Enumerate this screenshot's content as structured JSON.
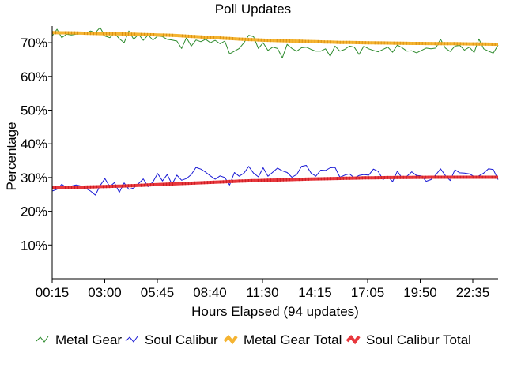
{
  "chart_data": {
    "type": "line",
    "title": "Poll Updates",
    "xlabel": "Hours Elapsed (94 updates)",
    "ylabel": "Percentage",
    "x_ticks": [
      "00:15",
      "03:00",
      "05:45",
      "08:40",
      "11:30",
      "14:15",
      "17:05",
      "19:50",
      "22:35"
    ],
    "y_ticks": [
      "10%",
      "20%",
      "30%",
      "40%",
      "50%",
      "60%",
      "70%"
    ],
    "ylim": [
      0,
      75
    ],
    "n_updates": 94,
    "grid": false,
    "legend_position": "bottom",
    "series": [
      {
        "name": "Metal Gear",
        "color": "#2e8b2e",
        "values": [
          72,
          74,
          71.5,
          72.5,
          72.3,
          72.5,
          72.6,
          72.8,
          73.5,
          73,
          74.5,
          72,
          71.5,
          72.8,
          71.2,
          70,
          73.5,
          71,
          72.5,
          70.7,
          72.3,
          70.8,
          72,
          71.8,
          71,
          70.8,
          70.5,
          68.3,
          71.5,
          69,
          70.8,
          70.3,
          71,
          70,
          70.7,
          69.7,
          70.5,
          66.7,
          67.5,
          68.3,
          70,
          72.2,
          71.8,
          68.3,
          70,
          67.7,
          68.7,
          68.3,
          65.5,
          69.5,
          68.3,
          67.5,
          68.5,
          68.7,
          68,
          67.5,
          67.5,
          68.2,
          66,
          69,
          67.5,
          68,
          69,
          68.7,
          66.5,
          69,
          68.2,
          67.7,
          67.3,
          68,
          68.7,
          67.2,
          69.3,
          68.5,
          67.5,
          67.6,
          67,
          67.7,
          68.4,
          68.2,
          68.4,
          71,
          68.4,
          67.4,
          69,
          69.2,
          67.8,
          68.7,
          67.1,
          71.1,
          68.2,
          67.5,
          66.9,
          69.3
        ]
      },
      {
        "name": "Soul Calibur",
        "color": "#1a1ad4",
        "values": [
          26,
          26.5,
          28,
          27,
          27.5,
          27.8,
          27.5,
          26.8,
          26,
          24.8,
          27.6,
          29.7,
          27.3,
          28.5,
          25.6,
          28.4,
          26.5,
          26.9,
          28.2,
          29.6,
          27.3,
          28.7,
          31.2,
          29,
          30.9,
          28,
          30.7,
          29.2,
          29.7,
          30.9,
          33,
          32.5,
          31.6,
          30.5,
          29.5,
          30.5,
          30,
          27.8,
          31.5,
          30.4,
          31.3,
          33.3,
          31.3,
          30.2,
          32.9,
          30.4,
          31.6,
          32.8,
          32,
          31.5,
          30.1,
          30.9,
          33.3,
          33.6,
          31.3,
          30.4,
          32.2,
          32.1,
          32.9,
          33,
          30.1,
          30.7,
          31.1,
          29.9,
          30.6,
          30.9,
          30.7,
          32.5,
          31.8,
          29.4,
          30.3,
          28.8,
          31.9,
          29.8,
          30.4,
          31.7,
          30.6,
          30.5,
          28.9,
          29.4,
          30.8,
          32.6,
          30.6,
          29.1,
          32.3,
          31.4,
          31.3,
          31.1,
          30.3,
          30.5,
          31.3,
          32.6,
          32.4,
          29.4
        ]
      },
      {
        "name": "Metal Gear Total",
        "color": "#f5b431",
        "values": [
          73,
          72.98,
          72.96,
          72.94,
          72.92,
          72.9,
          72.86,
          72.82,
          72.78,
          72.74,
          72.7,
          72.68,
          72.66,
          72.64,
          72.62,
          72.6,
          72.56,
          72.52,
          72.48,
          72.44,
          72.4,
          72.36,
          72.32,
          72.28,
          72.24,
          72.2,
          72.12,
          72.04,
          71.96,
          71.88,
          71.8,
          71.72,
          71.64,
          71.56,
          71.48,
          71.4,
          71.32,
          71.24,
          71.16,
          71.08,
          71,
          70.94,
          70.88,
          70.82,
          70.76,
          70.7,
          70.66,
          70.62,
          70.58,
          70.54,
          70.5,
          70.46,
          70.42,
          70.38,
          70.34,
          70.3,
          70.26,
          70.22,
          70.18,
          70.14,
          70.1,
          70.08,
          70.06,
          70.04,
          70.02,
          70,
          69.98,
          69.96,
          69.94,
          69.92,
          69.9,
          69.88,
          69.86,
          69.84,
          69.82,
          69.8,
          69.79,
          69.78,
          69.77,
          69.76,
          69.75,
          69.74,
          69.73,
          69.72,
          69.71,
          69.7,
          69.68,
          69.66,
          69.64,
          69.62,
          69.6,
          69.58,
          69.56,
          69.54
        ]
      },
      {
        "name": "Soul Calibur Total",
        "color": "#e8383d",
        "values": [
          27,
          27.02,
          27.04,
          27.06,
          27.08,
          27.1,
          27.14,
          27.18,
          27.22,
          27.26,
          27.3,
          27.34,
          27.38,
          27.42,
          27.46,
          27.5,
          27.56,
          27.62,
          27.68,
          27.74,
          27.8,
          27.86,
          27.92,
          27.98,
          28.04,
          28.1,
          28.16,
          28.22,
          28.28,
          28.34,
          28.4,
          28.46,
          28.52,
          28.58,
          28.64,
          28.7,
          28.76,
          28.82,
          28.88,
          28.94,
          29,
          29.04,
          29.08,
          29.12,
          29.16,
          29.2,
          29.24,
          29.28,
          29.32,
          29.36,
          29.4,
          29.44,
          29.48,
          29.52,
          29.56,
          29.6,
          29.63,
          29.66,
          29.69,
          29.72,
          29.75,
          29.78,
          29.81,
          29.84,
          29.87,
          29.9,
          29.92,
          29.94,
          29.96,
          29.98,
          30,
          30.01,
          30.02,
          30.03,
          30.04,
          30.05,
          30.06,
          30.07,
          30.08,
          30.09,
          30.1,
          30.1,
          30.1,
          30.1,
          30.1,
          30.1,
          30.1,
          30.1,
          30.1,
          30.1,
          30.1,
          30.1,
          30.1,
          30.1
        ]
      }
    ]
  }
}
